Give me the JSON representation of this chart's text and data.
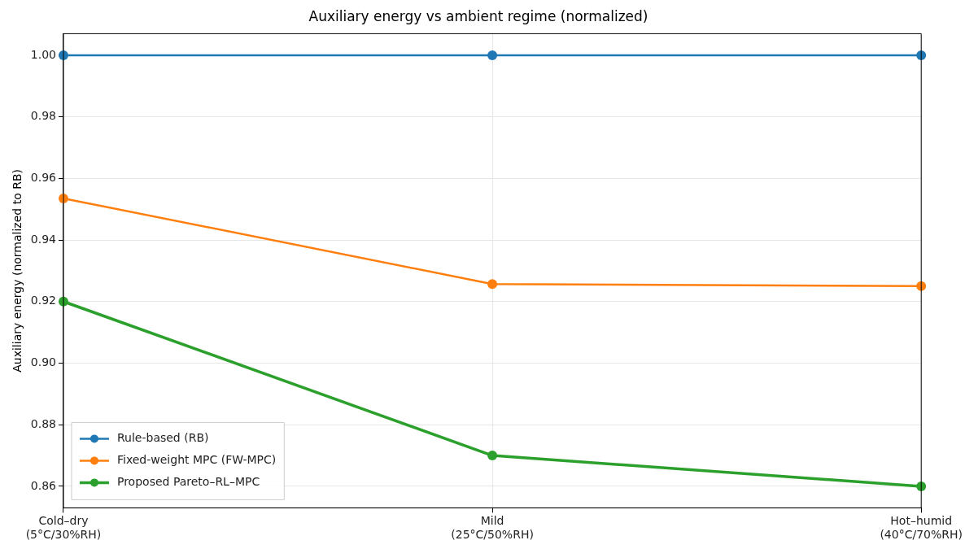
{
  "chart_data": {
    "type": "line",
    "title": "Auxiliary energy vs ambient regime (normalized)",
    "ylabel": "Auxiliary energy (normalized to RB)",
    "categories": [
      "Cold–dry\n(5°C/30%RH)",
      "Mild\n(25°C/50%RH)",
      "Hot–humid\n(40°C/70%RH)"
    ],
    "series": [
      {
        "name": "Rule-based (RB)",
        "color": "#1f77b4",
        "values": [
          1.0,
          1.0,
          1.0
        ]
      },
      {
        "name": "Fixed-weight MPC (FW-MPC)",
        "color": "#ff7f0e",
        "values": [
          0.9535,
          0.9257,
          0.925
        ]
      },
      {
        "name": "Proposed Pareto–RL–MPC",
        "color": "#2ca02c",
        "values": [
          0.92,
          0.87,
          0.86
        ]
      }
    ],
    "ylim": [
      0.853,
      1.007
    ],
    "yticks": [
      {
        "value": 0.86,
        "label": "0.86"
      },
      {
        "value": 0.88,
        "label": "0.88"
      },
      {
        "value": 0.9,
        "label": "0.90"
      },
      {
        "value": 0.92,
        "label": "0.92"
      },
      {
        "value": 0.94,
        "label": "0.94"
      },
      {
        "value": 0.96,
        "label": "0.96"
      },
      {
        "value": 0.98,
        "label": "0.98"
      },
      {
        "value": 1.0,
        "label": "1.00"
      }
    ],
    "grid": true,
    "legend": "bottom left",
    "marker": "circle",
    "line_style": "solid"
  }
}
